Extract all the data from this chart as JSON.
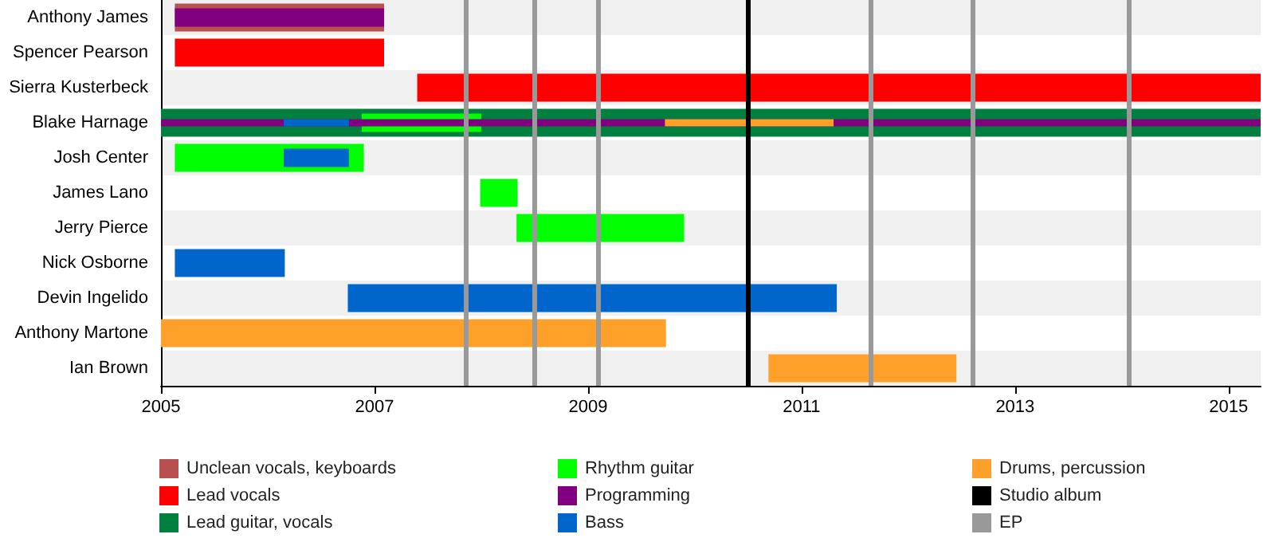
{
  "chart_data": {
    "type": "bar",
    "orientation": "horizontal",
    "categories": [
      "Anthony James",
      "Spencer Pearson",
      "Sierra Kusterbeck",
      "Blake Harnage",
      "Josh Center",
      "James Lano",
      "Jerry Pierce",
      "Nick Osborne",
      "Devin Ingelido",
      "Anthony Martone",
      "Ian Brown"
    ],
    "series": [
      {
        "name": "Unclean vocals, keyboards",
        "color": "#b85050",
        "base": [
          2005.13,
          null,
          null,
          null,
          null,
          null,
          null,
          null,
          null,
          null,
          null
        ],
        "values": [
          1.96,
          null,
          null,
          null,
          null,
          null,
          null,
          null,
          null,
          null,
          null
        ]
      },
      {
        "name": "Lead vocals",
        "color": "#ff0000",
        "base": [
          null,
          2005.13,
          2007.4,
          null,
          null,
          null,
          null,
          null,
          null,
          null,
          null
        ],
        "values": [
          null,
          1.96,
          7.9,
          null,
          null,
          null,
          null,
          null,
          null,
          null,
          null
        ]
      },
      {
        "name": "Lead guitar, vocals",
        "color": "#007f3f",
        "base": [
          null,
          null,
          null,
          2005,
          null,
          null,
          null,
          null,
          null,
          null,
          null
        ],
        "values": [
          null,
          null,
          null,
          10.3,
          null,
          null,
          null,
          null,
          null,
          null,
          null
        ]
      },
      {
        "name": "Rhythm guitar",
        "color": "#00ff00",
        "base": [
          null,
          null,
          null,
          2006.88,
          2005.13,
          2007.99,
          2008.33,
          null,
          null,
          null,
          null
        ],
        "values": [
          null,
          null,
          null,
          1.12,
          1.77,
          0.35,
          1.57,
          null,
          null,
          null,
          null
        ]
      },
      {
        "name": "Programming",
        "color": "#800080",
        "base": [
          2005.13,
          null,
          null,
          2005,
          null,
          null,
          null,
          null,
          null,
          null,
          null
        ],
        "values": [
          1.96,
          null,
          null,
          10.3,
          null,
          null,
          null,
          null,
          null,
          null,
          null
        ]
      },
      {
        "name": "Bass",
        "color": "#0066cc",
        "base": [
          null,
          null,
          null,
          2006.15,
          2006.15,
          null,
          null,
          2005.13,
          2006.75,
          null,
          null
        ],
        "values": [
          null,
          null,
          null,
          0.61,
          0.61,
          null,
          null,
          1.03,
          4.58,
          null,
          null
        ]
      },
      {
        "name": "Drums, percussion",
        "color": "#ffa02a",
        "base": [
          null,
          null,
          null,
          2009.72,
          null,
          null,
          null,
          null,
          null,
          2005,
          2010.69
        ],
        "values": [
          null,
          null,
          null,
          1.58,
          null,
          null,
          null,
          null,
          null,
          4.73,
          1.76
        ]
      }
    ],
    "ref_lines": [
      {
        "axis": "x",
        "value": 2010.49,
        "label": "Studio album",
        "color": "#000000"
      },
      {
        "axis": "x",
        "value": 2007.85,
        "label": "EP",
        "color": "#999999"
      },
      {
        "axis": "x",
        "value": 2008.49,
        "color": "#999999"
      },
      {
        "axis": "x",
        "value": 2009.09,
        "color": "#999999"
      },
      {
        "axis": "x",
        "value": 2011.64,
        "color": "#999999"
      },
      {
        "axis": "x",
        "value": 2012.6,
        "color": "#999999"
      },
      {
        "axis": "x",
        "value": 2014.07,
        "color": "#999999"
      }
    ],
    "xlim": [
      2005,
      2015.3
    ],
    "xticks": [
      2005,
      2007,
      2009,
      2011,
      2013,
      2015
    ],
    "legend": "bottom"
  }
}
